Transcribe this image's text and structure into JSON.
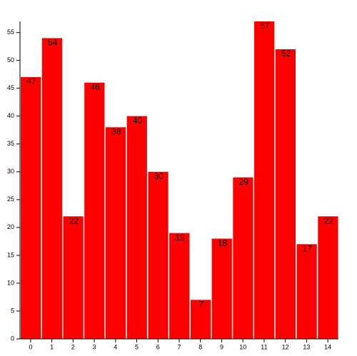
{
  "chart_data": {
    "type": "bar",
    "categories": [
      "0",
      "1",
      "2",
      "3",
      "4",
      "5",
      "6",
      "7",
      "8",
      "9",
      "10",
      "11",
      "12",
      "13",
      "14"
    ],
    "values": [
      47,
      54,
      22,
      46,
      38,
      40,
      30,
      19,
      7,
      18,
      29,
      57,
      52,
      17,
      22
    ],
    "color": "#ff0000",
    "ylim": [
      0,
      57
    ],
    "yticks": [
      0,
      5,
      10,
      15,
      20,
      25,
      30,
      35,
      40,
      45,
      50,
      55
    ]
  }
}
